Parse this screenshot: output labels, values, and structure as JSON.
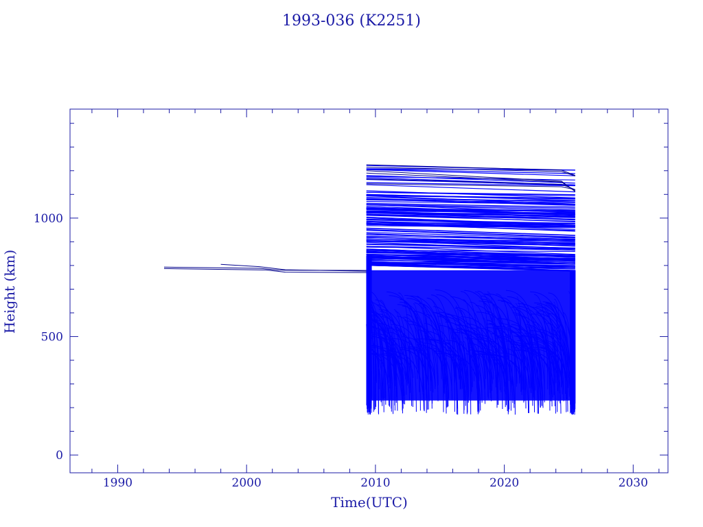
{
  "chart_data": {
    "type": "line",
    "title": "1993-036 (K2251)",
    "xlabel": "Time(UTC)",
    "ylabel": "Height (km)",
    "xlim": [
      1986.3,
      2032.7
    ],
    "ylim": [
      -75,
      1460
    ],
    "x_ticks": [
      1990,
      2000,
      2010,
      2020,
      2030
    ],
    "y_ticks": [
      0,
      500,
      1000
    ],
    "grid": false,
    "legend": "none",
    "colors": {
      "text": "#1a1aa6",
      "axes": "#1a1aa6",
      "series": "#0000ff"
    },
    "parent_series": [
      {
        "x": [
          1993.6,
          2001.0,
          2002.5,
          2009.3
        ],
        "y": [
          793,
          788,
          780,
          779
        ]
      },
      {
        "x": [
          1993.6,
          2001.5,
          2003.0,
          2009.3
        ],
        "y": [
          787,
          781,
          772,
          770
        ]
      },
      {
        "x": [
          1998.0,
          2001.0,
          2003.0,
          2009.3
        ],
        "y": [
          805,
          795,
          782,
          776
        ]
      }
    ],
    "debris_cloud": {
      "event_year": 2009.3,
      "end_year": 2025.5,
      "altitude_range_km": [
        165,
        1225
      ],
      "apogee_band_km": [
        800,
        1225
      ],
      "perigee_band_km": [
        170,
        780
      ]
    }
  }
}
